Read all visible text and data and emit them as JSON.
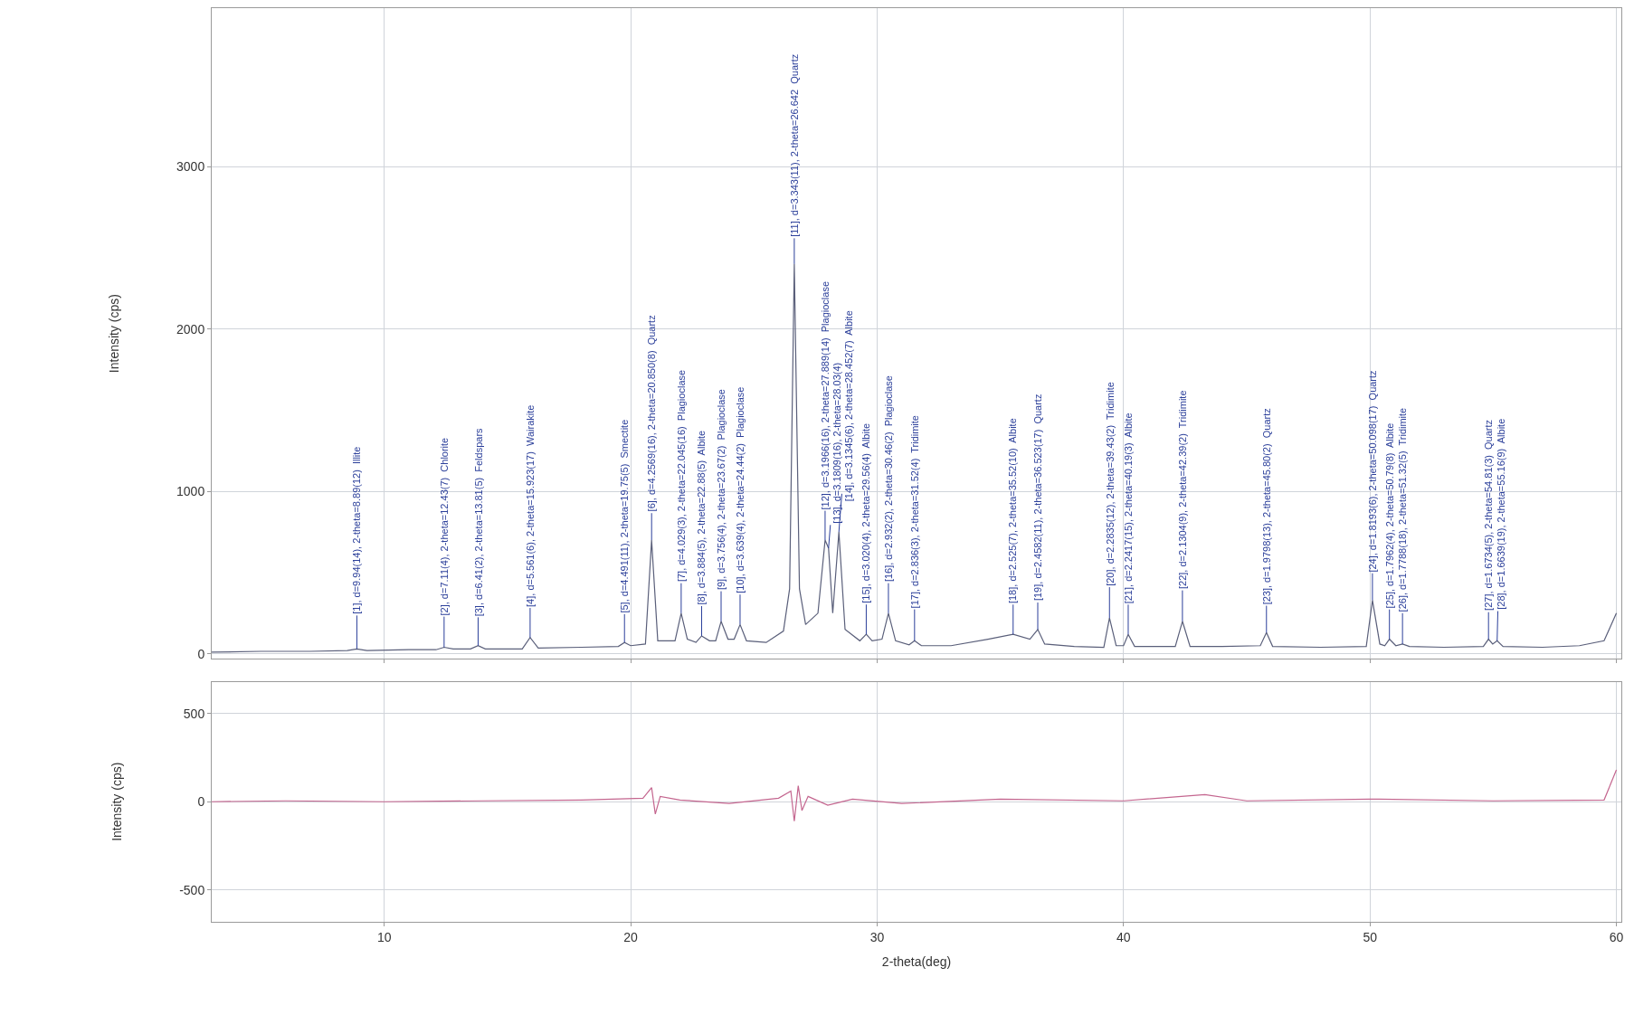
{
  "chart_data": [
    {
      "type": "line",
      "ylabel": "Intensity (cps)",
      "xlim": [
        3,
        60.2
      ],
      "xticks": [
        10,
        20,
        30,
        40,
        50,
        60
      ],
      "ylim": [
        -30,
        3975
      ],
      "yticks": [
        0,
        1000,
        2000,
        3000
      ],
      "grid": true,
      "tick_labels": "y",
      "series": [
        {
          "color": "#5a5f7a",
          "x": [
            3,
            5,
            7,
            8.5,
            8.89,
            9.3,
            11,
            12.1,
            12.43,
            12.8,
            13.5,
            13.81,
            14.1,
            15.6,
            15.92,
            16.25,
            18,
            19.5,
            19.75,
            20.0,
            20.6,
            20.85,
            21.1,
            21.8,
            22.05,
            22.3,
            22.65,
            22.88,
            23.2,
            23.45,
            23.67,
            23.95,
            24.2,
            24.44,
            24.7,
            25.5,
            26.2,
            26.45,
            26.64,
            26.85,
            27.1,
            27.6,
            27.89,
            28.03,
            28.2,
            28.45,
            28.7,
            29.3,
            29.56,
            29.8,
            30.2,
            30.46,
            30.75,
            31.3,
            31.52,
            31.8,
            33,
            34.5,
            35.52,
            36.2,
            36.52,
            36.8,
            38,
            39.2,
            39.43,
            39.7,
            40.0,
            40.19,
            40.45,
            42.1,
            42.39,
            42.7,
            44,
            45.55,
            45.8,
            46.05,
            48,
            49.85,
            50.1,
            50.4,
            50.6,
            50.79,
            51.05,
            51.32,
            51.6,
            53,
            54.6,
            54.81,
            54.98,
            55.16,
            55.4,
            57,
            58.5,
            59.5,
            60
          ],
          "values": [
            10,
            15,
            15,
            20,
            30,
            20,
            25,
            25,
            40,
            30,
            30,
            50,
            30,
            30,
            100,
            35,
            40,
            45,
            70,
            50,
            60,
            700,
            80,
            80,
            250,
            90,
            70,
            110,
            80,
            80,
            200,
            90,
            90,
            180,
            80,
            70,
            140,
            400,
            2400,
            400,
            180,
            250,
            700,
            650,
            250,
            750,
            150,
            80,
            120,
            80,
            90,
            250,
            80,
            55,
            80,
            50,
            50,
            90,
            120,
            90,
            150,
            60,
            45,
            40,
            220,
            50,
            50,
            120,
            45,
            45,
            200,
            45,
            45,
            50,
            130,
            45,
            40,
            45,
            330,
            60,
            50,
            90,
            50,
            60,
            45,
            40,
            45,
            90,
            60,
            80,
            45,
            40,
            50,
            80,
            250
          ]
        }
      ],
      "annotations": [
        {
          "text": "[1], d=9.94(14), 2-theta=8.89(12)  Illite",
          "x": 8.89,
          "y": 30
        },
        {
          "text": "[2], d=7.11(4), 2-theta=12.43(7)  Chlorite",
          "x": 12.43,
          "y": 40
        },
        {
          "text": "[3], d=6.41(2), 2-theta=13.81(5)  Feldspars",
          "x": 13.81,
          "y": 50
        },
        {
          "text": "[4], d=5.561(6), 2-theta=15.923(17)  Wairakite",
          "x": 15.92,
          "y": 100
        },
        {
          "text": "[5], d=4.491(11), 2-theta=19.75(5)  Smectite",
          "x": 19.75,
          "y": 70
        },
        {
          "text": "[6], d=4.2569(16), 2-theta=20.850(8)  Quartz",
          "x": 20.85,
          "y": 700
        },
        {
          "text": "[7], d=4.029(3), 2-theta=22.045(16)  Plagioclase",
          "x": 22.05,
          "y": 250
        },
        {
          "text": "[8], d=3.884(5), 2-theta=22.88(5)  Albite",
          "x": 22.88,
          "y": 110
        },
        {
          "text": "[9], d=3.756(4), 2-theta=23.67(2)  Plagioclase",
          "x": 23.67,
          "y": 200
        },
        {
          "text": "[10], d=3.639(4), 2-theta=24.44(2)  Plagioclase",
          "x": 24.44,
          "y": 180
        },
        {
          "text": "[11], d=3.343(11), 2-theta=26.642  Quartz",
          "x": 26.64,
          "y": 2400
        },
        {
          "text": "[12], d=3.1966(16), 2-theta=27.889(14)  Plagioclase",
          "x": 27.89,
          "y": 700
        },
        {
          "text": "[13], d=3.1809(16), 2-theta=28.03(4)",
          "x": 28.03,
          "y": 650
        },
        {
          "text": "[14], d=3.1345(6), 2-theta=28.452(7)  Albite",
          "x": 28.45,
          "y": 750
        },
        {
          "text": "[15], d=3.020(4), 2-theta=29.56(4)  Albite",
          "x": 29.56,
          "y": 120
        },
        {
          "text": "[16], d=2.932(2), 2-theta=30.46(2)  Plagioclase",
          "x": 30.46,
          "y": 250
        },
        {
          "text": "[17], d=2.836(3), 2-theta=31.52(4)  Tridimite",
          "x": 31.52,
          "y": 80
        },
        {
          "text": "[18], d=2.525(7), 2-theta=35.52(10)  Albite",
          "x": 35.52,
          "y": 120
        },
        {
          "text": "[19], d=2.4582(11), 2-theta=36.523(17)  Quartz",
          "x": 36.52,
          "y": 150
        },
        {
          "text": "[20], d=2.2835(12), 2-theta=39.43(2)  Tridimite",
          "x": 39.43,
          "y": 220
        },
        {
          "text": "[21], d=2.2417(15), 2-theta=40.19(3)  Albite",
          "x": 40.19,
          "y": 120
        },
        {
          "text": "[22], d=2.1304(9), 2-theta=42.39(2)  Tridimite",
          "x": 42.39,
          "y": 200
        },
        {
          "text": "[23], d=1.9798(13), 2-theta=45.80(2)  Quartz",
          "x": 45.8,
          "y": 130
        },
        {
          "text": "[24], d=1.8193(6), 2-theta=50.098(17)  Quartz",
          "x": 50.1,
          "y": 330
        },
        {
          "text": "[25], d=1.7962(4), 2-theta=50.79(8)  Albite",
          "x": 50.79,
          "y": 90
        },
        {
          "text": "[26], d=1.7788(18), 2-theta=51.32(5)  Tridimite",
          "x": 51.32,
          "y": 60
        },
        {
          "text": "[27], d=1.6734(5), 2-theta=54.81(3)  Quartz",
          "x": 54.81,
          "y": 90
        },
        {
          "text": "[28], d=1.6639(19), 2-theta=55.16(9)  Albite",
          "x": 55.16,
          "y": 80
        }
      ]
    },
    {
      "type": "line",
      "xlabel": "2-theta(deg)",
      "ylabel": "Intensity (cps)",
      "xlim": [
        3,
        60.2
      ],
      "xticks": [
        10,
        20,
        30,
        40,
        50,
        60
      ],
      "ylim": [
        -680,
        680
      ],
      "yticks": [
        -500,
        0,
        500
      ],
      "grid": true,
      "series": [
        {
          "color": "#c4668f",
          "x": [
            3,
            6,
            10,
            14,
            18,
            20.5,
            20.85,
            21.0,
            21.2,
            22,
            24,
            26,
            26.5,
            26.64,
            26.8,
            26.95,
            27.2,
            28,
            29,
            31,
            35,
            40,
            43.3,
            45,
            50,
            55,
            59.5,
            60
          ],
          "values": [
            0,
            5,
            0,
            5,
            10,
            20,
            80,
            -70,
            30,
            10,
            -10,
            20,
            60,
            -110,
            90,
            -50,
            30,
            -20,
            15,
            -10,
            15,
            5,
            40,
            5,
            15,
            5,
            10,
            180
          ]
        }
      ]
    }
  ]
}
